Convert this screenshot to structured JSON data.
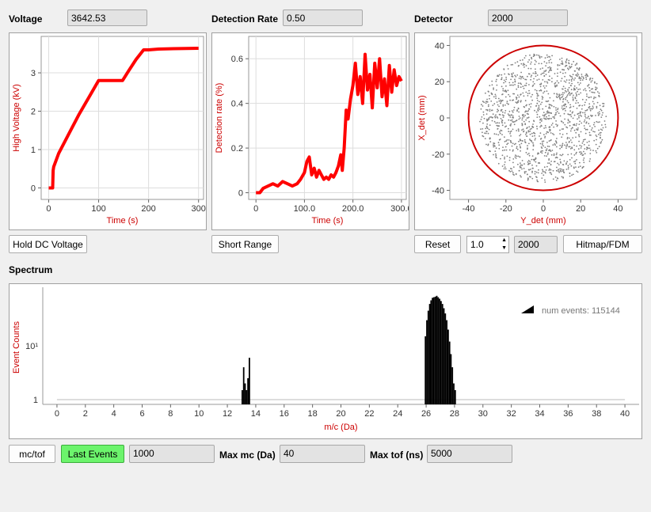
{
  "voltage": {
    "label": "Voltage",
    "value": "3642.53"
  },
  "detection_rate": {
    "label": "Detection Rate",
    "value": "0.50"
  },
  "detector": {
    "label": "Detector",
    "value": "2000"
  },
  "buttons": {
    "hold_dc": "Hold DC Voltage",
    "short_range": "Short Range",
    "reset": "Reset",
    "hitmap": "Hitmap/FDM",
    "mc_tof": "mc/tof",
    "last_events": "Last Events"
  },
  "detector_controls": {
    "spin_value": "1.0",
    "count_value": "2000"
  },
  "spectrum_section": {
    "title": "Spectrum"
  },
  "bottom": {
    "last_events_value": "1000",
    "max_mc_label": "Max mc (Da)",
    "max_mc_value": "40",
    "max_tof_label": "Max tof (ns)",
    "max_tof_value": "5000"
  },
  "colors": {
    "trace": "#ff0000",
    "axis_label": "#cc0000",
    "last_events_bg": "#6cf46c"
  },
  "chart_data": [
    {
      "type": "line",
      "xlabel": "Time (s)",
      "ylabel": "High Voltage (kV)",
      "xlim": [
        -15,
        310
      ],
      "ylim": [
        -0.3,
        3.95
      ],
      "xticks": [
        0,
        100,
        200,
        300
      ],
      "yticks": [
        0,
        1,
        2,
        3
      ],
      "grid": true,
      "x": [
        0,
        8,
        9,
        10,
        20,
        40,
        60,
        80,
        100,
        110,
        120,
        130,
        140,
        148,
        160,
        175,
        190,
        200,
        220,
        250,
        300
      ],
      "y": [
        0,
        0,
        0.45,
        0.55,
        0.9,
        1.4,
        1.9,
        2.35,
        2.8,
        2.8,
        2.8,
        2.8,
        2.8,
        2.8,
        3.05,
        3.35,
        3.6,
        3.6,
        3.62,
        3.63,
        3.64
      ]
    },
    {
      "type": "line",
      "xlabel": "Time (s)",
      "ylabel": "Detection rate (%)",
      "xlim": [
        -15,
        310
      ],
      "ylim": [
        -0.03,
        0.7
      ],
      "xticks": [
        0,
        100,
        200,
        300
      ],
      "yticks": [
        0,
        0.2,
        0.4,
        0.6
      ],
      "grid": true,
      "x": [
        0,
        8,
        15,
        25,
        35,
        45,
        55,
        65,
        75,
        85,
        92,
        100,
        105,
        110,
        115,
        120,
        125,
        130,
        135,
        140,
        145,
        150,
        155,
        160,
        165,
        170,
        175,
        178,
        182,
        186,
        190,
        195,
        200,
        205,
        210,
        215,
        220,
        225,
        230,
        235,
        240,
        245,
        250,
        255,
        260,
        265,
        270,
        275,
        280,
        285,
        290,
        295,
        300
      ],
      "y": [
        0,
        0,
        0.02,
        0.03,
        0.04,
        0.03,
        0.05,
        0.04,
        0.03,
        0.04,
        0.06,
        0.09,
        0.14,
        0.16,
        0.08,
        0.11,
        0.07,
        0.1,
        0.08,
        0.06,
        0.07,
        0.06,
        0.08,
        0.07,
        0.09,
        0.12,
        0.17,
        0.1,
        0.2,
        0.37,
        0.33,
        0.42,
        0.48,
        0.58,
        0.44,
        0.52,
        0.4,
        0.62,
        0.46,
        0.53,
        0.38,
        0.58,
        0.47,
        0.6,
        0.43,
        0.51,
        0.39,
        0.57,
        0.45,
        0.55,
        0.48,
        0.52,
        0.5
      ]
    },
    {
      "type": "scatter",
      "xlabel": "Y_det (mm)",
      "ylabel": "X_det (mm)",
      "xlim": [
        -50,
        50
      ],
      "ylim": [
        -45,
        45
      ],
      "xticks": [
        -40,
        -20,
        0,
        20,
        40
      ],
      "yticks": [
        -40,
        -20,
        0,
        20,
        40
      ],
      "grid": false,
      "circle_radius": 40,
      "point_count": 2000,
      "point_extent_radius": 34
    },
    {
      "type": "bar",
      "xlabel": "m/c (Da)",
      "ylabel": "Event Counts",
      "xlim": [
        -1,
        41
      ],
      "ylog": true,
      "xticks": [
        0,
        2,
        4,
        6,
        8,
        10,
        12,
        14,
        16,
        18,
        20,
        22,
        24,
        26,
        28,
        30,
        32,
        34,
        36,
        38,
        40
      ],
      "yticks": [
        "1",
        "10¹"
      ],
      "legend": {
        "text": "num events: 115144",
        "position": "top-right"
      },
      "peaks": [
        {
          "center": 13.3,
          "counts": [
            1.5,
            4,
            2,
            1.5,
            2.5,
            6
          ]
        },
        {
          "center": 27.0,
          "counts": [
            15,
            30,
            45,
            60,
            70,
            78,
            80,
            82,
            85,
            80,
            75,
            68,
            60,
            50,
            40,
            30,
            20,
            12,
            7,
            4,
            2,
            1.5
          ]
        }
      ]
    }
  ]
}
